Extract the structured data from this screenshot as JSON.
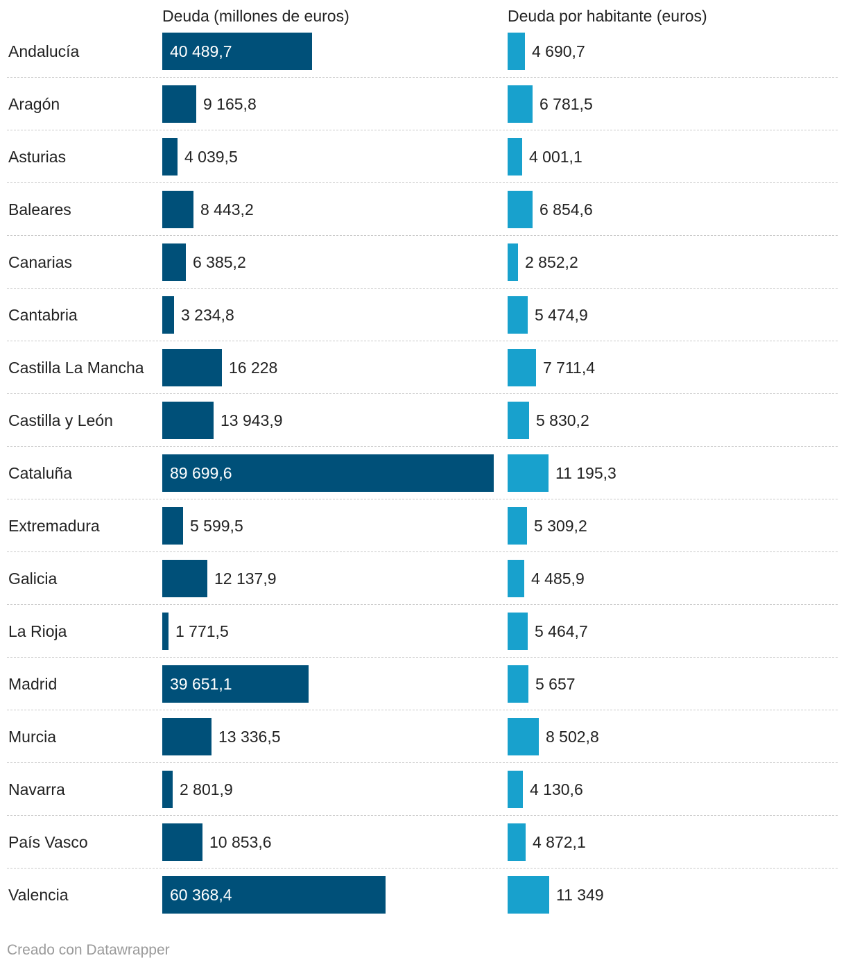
{
  "chart_data": {
    "type": "bar",
    "orientation": "horizontal",
    "categories": [
      "Andalucía",
      "Aragón",
      "Asturias",
      "Baleares",
      "Canarias",
      "Cantabria",
      "Castilla La Mancha",
      "Castilla y León",
      "Cataluña",
      "Extremadura",
      "Galicia",
      "La Rioja",
      "Madrid",
      "Murcia",
      "Navarra",
      "País Vasco",
      "Valencia"
    ],
    "series": [
      {
        "name": "Deuda (millones de euros)",
        "color": "#005079",
        "values": [
          40489.7,
          9165.8,
          4039.5,
          8443.2,
          6385.2,
          3234.8,
          16228,
          13943.9,
          89699.6,
          5599.5,
          12137.9,
          1771.5,
          39651.1,
          13336.5,
          2801.9,
          10853.6,
          60368.4
        ],
        "labels": [
          "40 489,7",
          "9 165,8",
          "4 039,5",
          "8 443,2",
          "6 385,2",
          "3 234,8",
          "16 228",
          "13 943,9",
          "89 699,6",
          "5 599,5",
          "12 137,9",
          "1 771,5",
          "39 651,1",
          "13 336,5",
          "2 801,9",
          "10 853,6",
          "60 368,4"
        ]
      },
      {
        "name": "Deuda por habitante (euros)",
        "color": "#18a1cd",
        "values": [
          4690.7,
          6781.5,
          4001.1,
          6854.6,
          2852.2,
          5474.9,
          7711.4,
          5830.2,
          11195.3,
          5309.2,
          4485.9,
          5464.7,
          5657,
          8502.8,
          4130.6,
          4872.1,
          11349
        ],
        "labels": [
          "4 690,7",
          "6 781,5",
          "4 001,1",
          "6 854,6",
          "2 852,2",
          "5 474,9",
          "7 711,4",
          "5 830,2",
          "11 195,3",
          "5 309,2",
          "4 485,9",
          "5 464,7",
          "5 657",
          "8 502,8",
          "4 130,6",
          "4 872,1",
          "11 349"
        ]
      }
    ],
    "footer": "Creado con Datawrapper"
  }
}
